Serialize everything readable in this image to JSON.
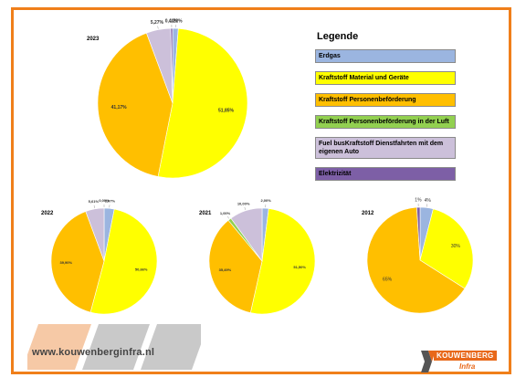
{
  "colors": {
    "frame": "#f07f1a",
    "slice_colors": [
      "#9bb5e0",
      "#ffff00",
      "#ffbf00",
      "#92d050",
      "#ccc0da",
      "#7d5fa6"
    ]
  },
  "legend": {
    "title": "Legende",
    "items": [
      {
        "label": "Erdgas",
        "color": "#9bb5e0"
      },
      {
        "label": "Kraftstoff Material und Geräte",
        "color": "#ffff00"
      },
      {
        "label": "Kraftstoff Personenbeförderung",
        "color": "#ffbf00"
      },
      {
        "label": "Kraftstoff Personenbeförderung in der Luft",
        "color": "#92d050"
      },
      {
        "label": "Fuel busKraftstoff Dienstfahrten mit dem eigenen Auto",
        "color": "#ccc0da"
      },
      {
        "label": "Elektrizität",
        "color": "#7d5fa6"
      }
    ]
  },
  "chart_data": [
    {
      "type": "pie",
      "title": "2023",
      "slices": [
        {
          "category": "Erdgas",
          "value": 1.22,
          "label": "1,22%"
        },
        {
          "category": "Kraftstoff Material und Geräte",
          "value": 51.85,
          "label": "51,85%"
        },
        {
          "category": "Kraftstoff Personenbeförderung",
          "value": 41.17,
          "label": "41,17%"
        },
        {
          "category": "Kraftstoff Personenbeförderung in der Luft",
          "value": 0.0,
          "label": ""
        },
        {
          "category": "Fuel busKraftstoff Dienstfahrten mit dem eigenen Auto",
          "value": 5.27,
          "label": "5,27%"
        },
        {
          "category": "Elektrizität",
          "value": 0.4,
          "label": "0,40%"
        }
      ]
    },
    {
      "type": "pie",
      "title": "2022",
      "slices": [
        {
          "category": "Erdgas",
          "value": 3.07,
          "label": "3,07%"
        },
        {
          "category": "Kraftstoff Material und Geräte",
          "value": 50.66,
          "label": "50,66%"
        },
        {
          "category": "Kraftstoff Personenbeförderung",
          "value": 39.9,
          "label": "39,90%"
        },
        {
          "category": "Kraftstoff Personenbeförderung in der Luft",
          "value": 0.0,
          "label": ""
        },
        {
          "category": "Fuel busKraftstoff Dienstfahrten mit dem eigenen Auto",
          "value": 5.61,
          "label": "5,61%"
        },
        {
          "category": "Elektrizität",
          "value": 0.0,
          "label": "0,00%"
        }
      ]
    },
    {
      "type": "pie",
      "title": "2021",
      "slices": [
        {
          "category": "Erdgas",
          "value": 2.0,
          "label": "2,00%"
        },
        {
          "category": "Kraftstoff Material und Geräte",
          "value": 51.5,
          "label": "51,50%"
        },
        {
          "category": "Kraftstoff Personenbeförderung",
          "value": 35.49,
          "label": "35,49%"
        },
        {
          "category": "Kraftstoff Personenbeförderung in der Luft",
          "value": 1.0,
          "label": "1,00%"
        },
        {
          "category": "Fuel busKraftstoff Dienstfahrten mit dem eigenen Auto",
          "value": 10.0,
          "label": "10,00%"
        },
        {
          "category": "Elektrizität",
          "value": 0.0,
          "label": ""
        }
      ]
    },
    {
      "type": "pie",
      "title": "2012",
      "slices": [
        {
          "category": "Erdgas",
          "value": 4,
          "label": "4%"
        },
        {
          "category": "Kraftstoff Material und Geräte",
          "value": 30,
          "label": "30%"
        },
        {
          "category": "Kraftstoff Personenbeförderung",
          "value": 65,
          "label": "65%"
        },
        {
          "category": "Kraftstoff Personenbeförderung in der Luft",
          "value": 0,
          "label": ""
        },
        {
          "category": "Fuel busKraftstoff Dienstfahrten mit dem eigenen Auto",
          "value": 0,
          "label": ""
        },
        {
          "category": "Elektrizität",
          "value": 1,
          "label": "1%"
        }
      ]
    }
  ],
  "footer": {
    "website": "www.kouwenberginfra.nl",
    "logo_brand": "KOUWENBERG",
    "logo_sub": "Infra"
  }
}
